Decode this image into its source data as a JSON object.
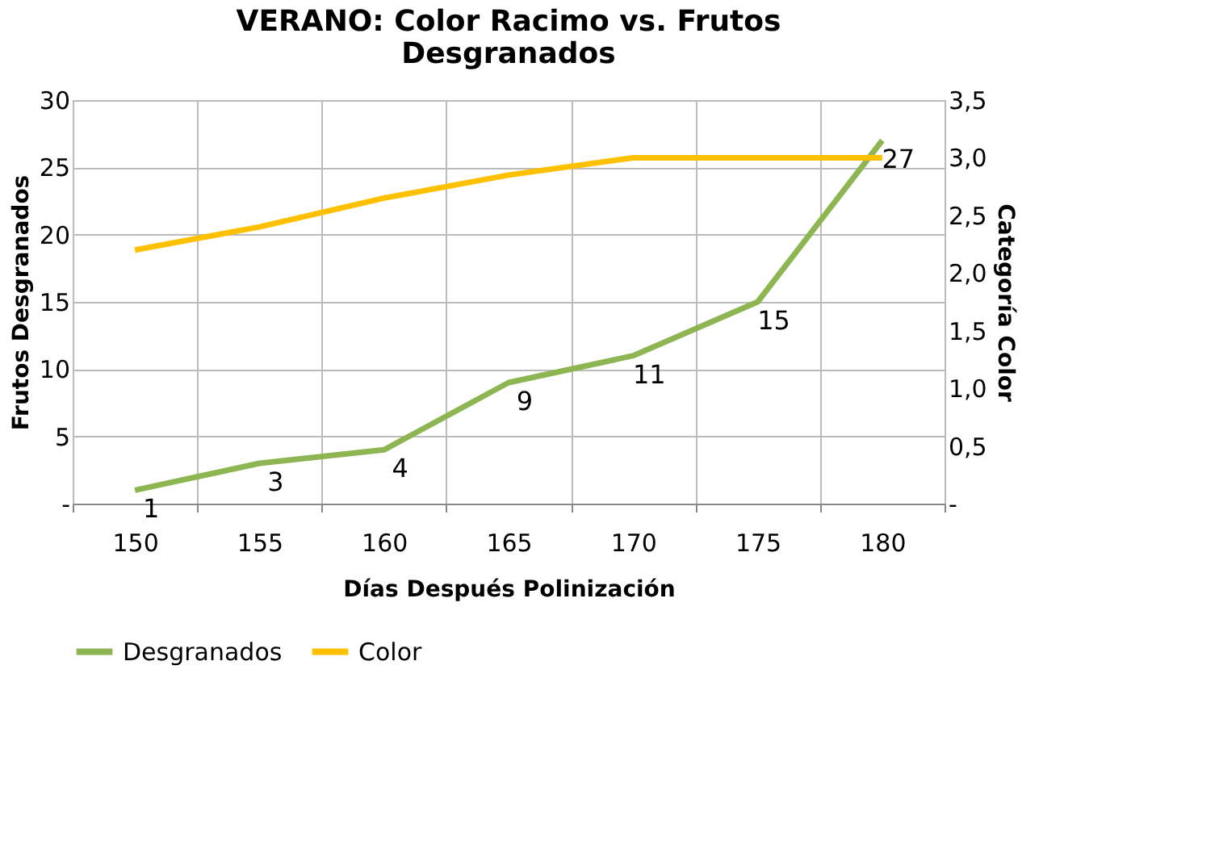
{
  "chart_data": {
    "type": "line",
    "title": "VERANO: Color Racimo vs. Frutos Desgranados",
    "xlabel": "Días Después Polinización",
    "ylabel": "Frutos Desgranados",
    "y2label": "Categoría Color",
    "categories": [
      "150",
      "155",
      "160",
      "165",
      "170",
      "175",
      "180"
    ],
    "series": [
      {
        "name": "Desgranados",
        "color": "#8db653",
        "values": [
          1,
          3,
          4,
          9,
          11,
          15,
          27
        ],
        "data_labels": true
      },
      {
        "name": "Color",
        "color": "#ffc000",
        "values": [
          2.2,
          2.4,
          2.65,
          2.85,
          3.0,
          3.0,
          3.0
        ],
        "axis": "y2"
      }
    ],
    "ylim": [
      0,
      30
    ],
    "yticks": [
      {
        "value": 0,
        "label": "-"
      },
      5,
      10,
      15,
      20,
      25,
      30
    ],
    "y2lim": [
      0,
      3.5
    ],
    "y2ticks": [
      {
        "value": 0,
        "label": "-"
      },
      {
        "value": 0.5,
        "label": "0,5"
      },
      {
        "value": 1,
        "label": "1,0"
      },
      {
        "value": 1.5,
        "label": "1,5"
      },
      {
        "value": 2,
        "label": "2,0"
      },
      {
        "value": 2.5,
        "label": "2,5"
      },
      {
        "value": 3,
        "label": "3,0"
      },
      {
        "value": 3.5,
        "label": "3,5"
      }
    ],
    "grid": true,
    "legend": "bottom",
    "marker": "none",
    "line_style": "solid"
  }
}
